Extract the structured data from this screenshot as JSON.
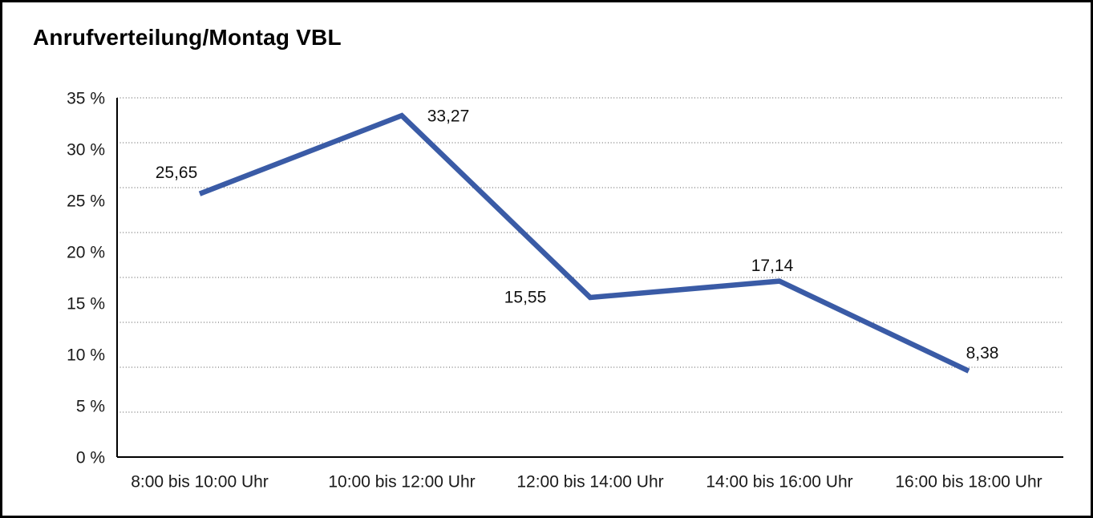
{
  "chart_data": {
    "type": "line",
    "title": "Anrufverteilung/Montag VBL",
    "categories": [
      "8:00 bis 10:00 Uhr",
      "10:00 bis 12:00 Uhr",
      "12:00 bis 14:00 Uhr",
      "14:00 bis 16:00 Uhr",
      "16:00 bis 18:00 Uhr"
    ],
    "values": [
      25.65,
      33.27,
      15.55,
      17.14,
      8.38
    ],
    "value_labels": [
      "25,65",
      "33,27",
      "15,55",
      "17,14",
      "8,38"
    ],
    "y_ticks": [
      35,
      30,
      25,
      20,
      15,
      10,
      5,
      0
    ],
    "y_tick_labels": [
      "35 %",
      "30 %",
      "25 %",
      "20 %",
      "15 %",
      "10 %",
      "5 %",
      "0 %"
    ],
    "ylim": [
      0,
      35
    ],
    "xlabel": "",
    "ylabel": "",
    "grid": "horizontal-dotted",
    "grid_divisions": 8,
    "legend": "none",
    "line_color": "#3A5BA6",
    "axis_color": "#000000",
    "gridline_color": "#555555",
    "text_color": "#1a1a1a",
    "background_color": "#ffffff",
    "border_color": "#000000"
  }
}
